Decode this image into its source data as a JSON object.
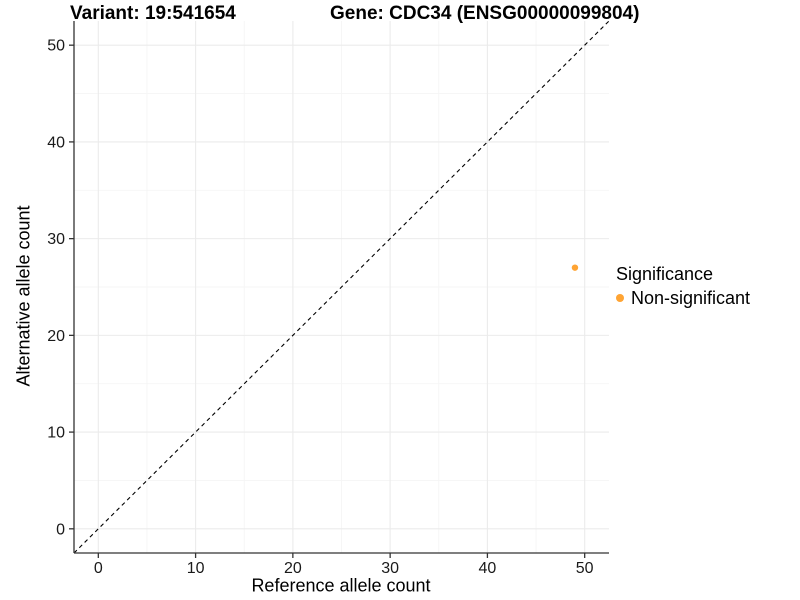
{
  "chart_data": {
    "type": "scatter",
    "titles": {
      "variant": "Variant: 19:541654",
      "gene": "Gene: CDC34 (ENSG00000099804)"
    },
    "xlabel": "Reference allele count",
    "ylabel": "Alternative allele count",
    "xlim": [
      -2.5,
      52.5
    ],
    "ylim": [
      -2.5,
      52.5
    ],
    "x_major_ticks": [
      0,
      10,
      20,
      30,
      40,
      50
    ],
    "y_major_ticks": [
      0,
      10,
      20,
      30,
      40,
      50
    ],
    "x_minor_ticks": [
      5,
      15,
      25,
      35,
      45
    ],
    "y_minor_ticks": [
      5,
      15,
      25,
      35,
      45
    ],
    "grid": true,
    "reference_line": {
      "slope": 1,
      "intercept": 0,
      "style": "dashed",
      "color": "#000000"
    },
    "series": [
      {
        "name": "Non-significant",
        "color": "#FFA433",
        "points": [
          {
            "x": 49,
            "y": 27
          }
        ]
      }
    ],
    "legend": {
      "title": "Significance",
      "position": "right",
      "items": [
        {
          "label": "Non-significant",
          "color": "#FFA433"
        }
      ]
    },
    "colors": {
      "background": "#FFFFFF",
      "grid_major": "#EBEBEB",
      "grid_minor": "#F5F5F5",
      "axis": "#333333",
      "tick_text": "#1A1A1A"
    }
  }
}
